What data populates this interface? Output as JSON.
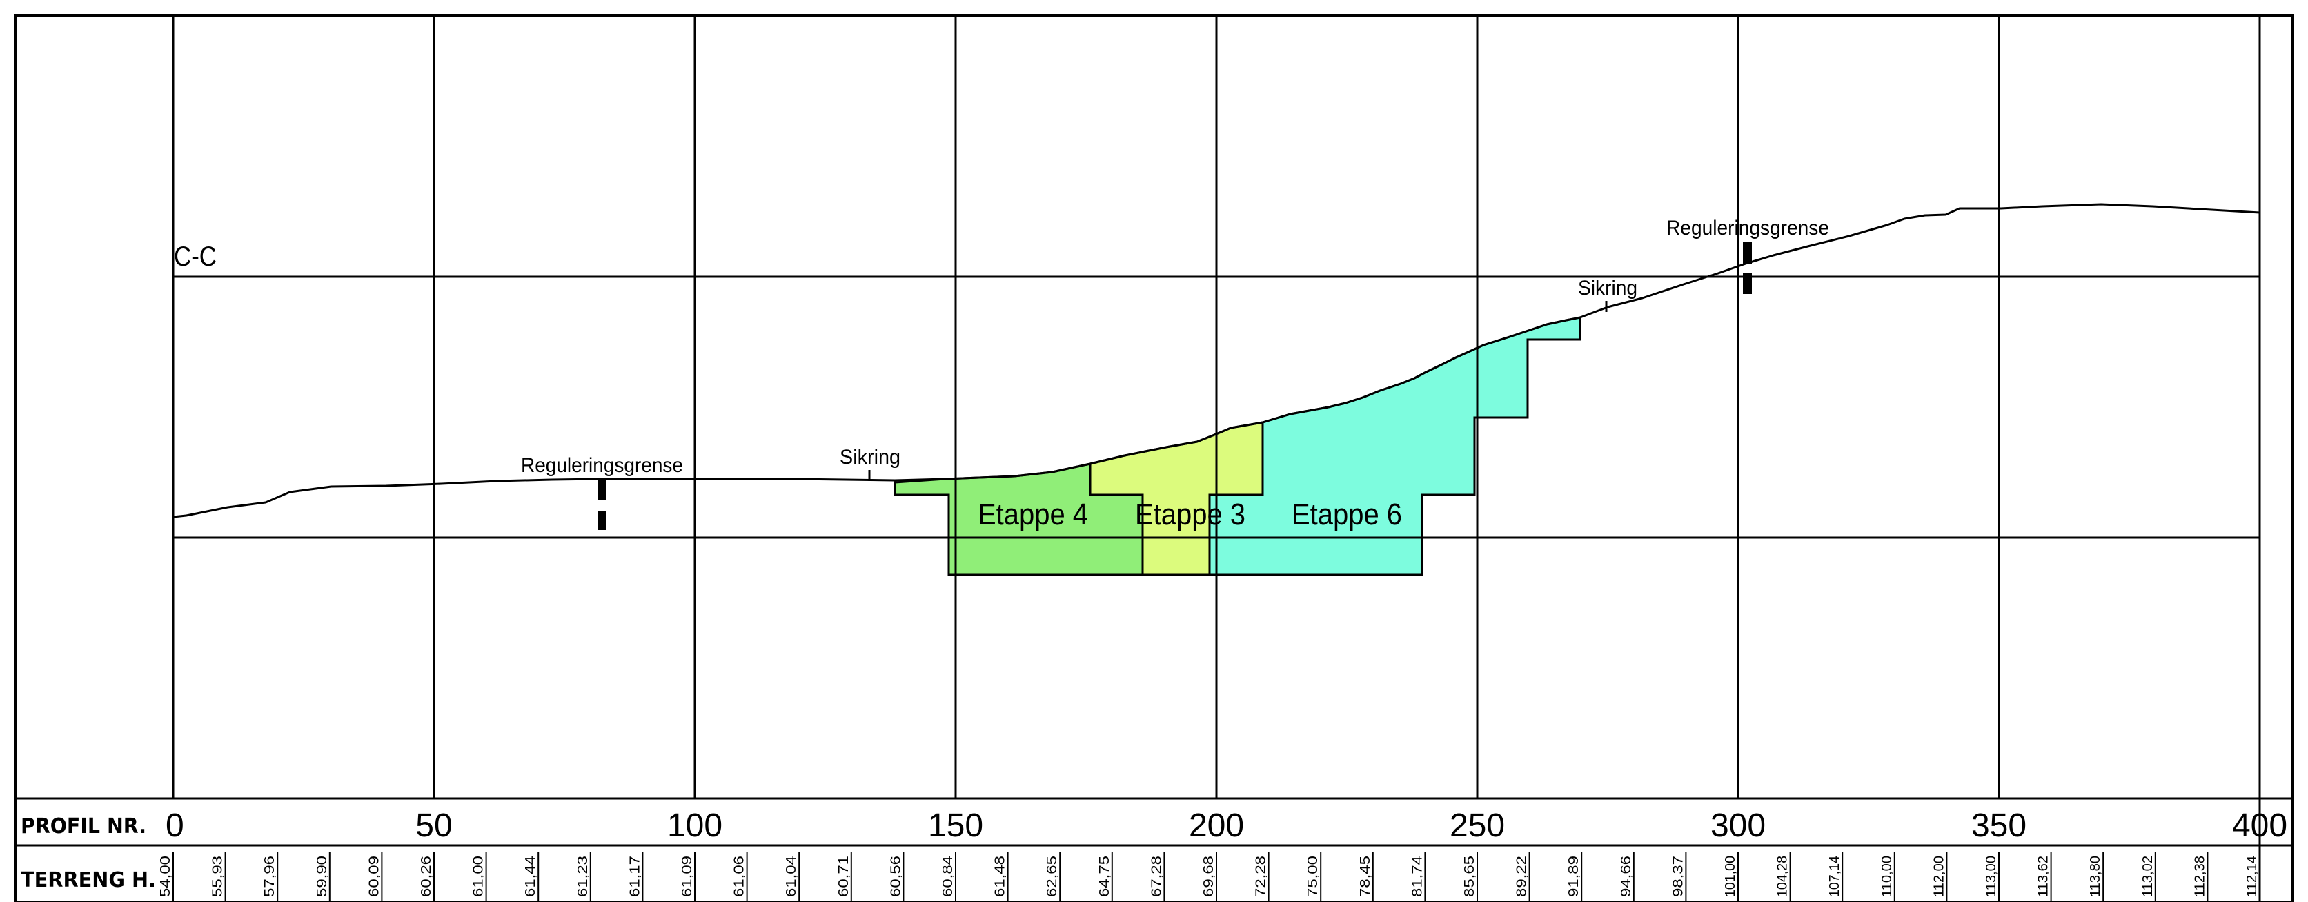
{
  "section_label": "C-C",
  "row_labels": {
    "profile": "PROFIL NR.",
    "terrain": "TERRENG H."
  },
  "profile_ticks": [
    "0",
    "50",
    "100",
    "150",
    "200",
    "250",
    "300",
    "350",
    "400"
  ],
  "annotations": {
    "reg_left": "Reguleringsgrense",
    "reg_right": "Reguleringsgrense",
    "sikring_left": "Sikring",
    "sikring_right": "Sikring"
  },
  "stages": [
    {
      "key": "etappe4",
      "label": "Etappe 4",
      "color": "#90ee78"
    },
    {
      "key": "etappe3",
      "label": "Etappe 3",
      "color": "#dcfb7d"
    },
    {
      "key": "etappe6",
      "label": "Etappe 6",
      "color": "#7dfcde"
    }
  ],
  "terrain_heights": [
    {
      "station": 0,
      "value": "54,00"
    },
    {
      "station": 10,
      "value": "55,93"
    },
    {
      "station": 20,
      "value": "57,96"
    },
    {
      "station": 30,
      "value": "59,90"
    },
    {
      "station": 40,
      "value": "60,09"
    },
    {
      "station": 50,
      "value": "60,26"
    },
    {
      "station": 60,
      "value": "61,00"
    },
    {
      "station": 70,
      "value": "61,44"
    },
    {
      "station": 80,
      "value": "61,23"
    },
    {
      "station": 90,
      "value": "61,17"
    },
    {
      "station": 100,
      "value": "61,09"
    },
    {
      "station": 110,
      "value": "61,06"
    },
    {
      "station": 120,
      "value": "61,04"
    },
    {
      "station": 130,
      "value": "60,71"
    },
    {
      "station": 140,
      "value": "60,56"
    },
    {
      "station": 150,
      "value": "60,84"
    },
    {
      "station": 160,
      "value": "61,48"
    },
    {
      "station": 170,
      "value": "62,65"
    },
    {
      "station": 180,
      "value": "64,75"
    },
    {
      "station": 190,
      "value": "67,28"
    },
    {
      "station": 200,
      "value": "69,68"
    },
    {
      "station": 210,
      "value": "72,28"
    },
    {
      "station": 220,
      "value": "75,00"
    },
    {
      "station": 230,
      "value": "78,45"
    },
    {
      "station": 240,
      "value": "81,74"
    },
    {
      "station": 250,
      "value": "85,65"
    },
    {
      "station": 260,
      "value": "89,22"
    },
    {
      "station": 270,
      "value": "91,89"
    },
    {
      "station": 280,
      "value": "94,66"
    },
    {
      "station": 290,
      "value": "98,37"
    },
    {
      "station": 300,
      "value": "101,00"
    },
    {
      "station": 310,
      "value": "104,28"
    },
    {
      "station": 320,
      "value": "107,14"
    },
    {
      "station": 330,
      "value": "110,00"
    },
    {
      "station": 340,
      "value": "112,00"
    },
    {
      "station": 350,
      "value": "113,00"
    },
    {
      "station": 360,
      "value": "113,62"
    },
    {
      "station": 370,
      "value": "113,80"
    },
    {
      "station": 380,
      "value": "113,02"
    },
    {
      "station": 390,
      "value": "112,38"
    },
    {
      "station": 400,
      "value": "112,14"
    }
  ]
}
